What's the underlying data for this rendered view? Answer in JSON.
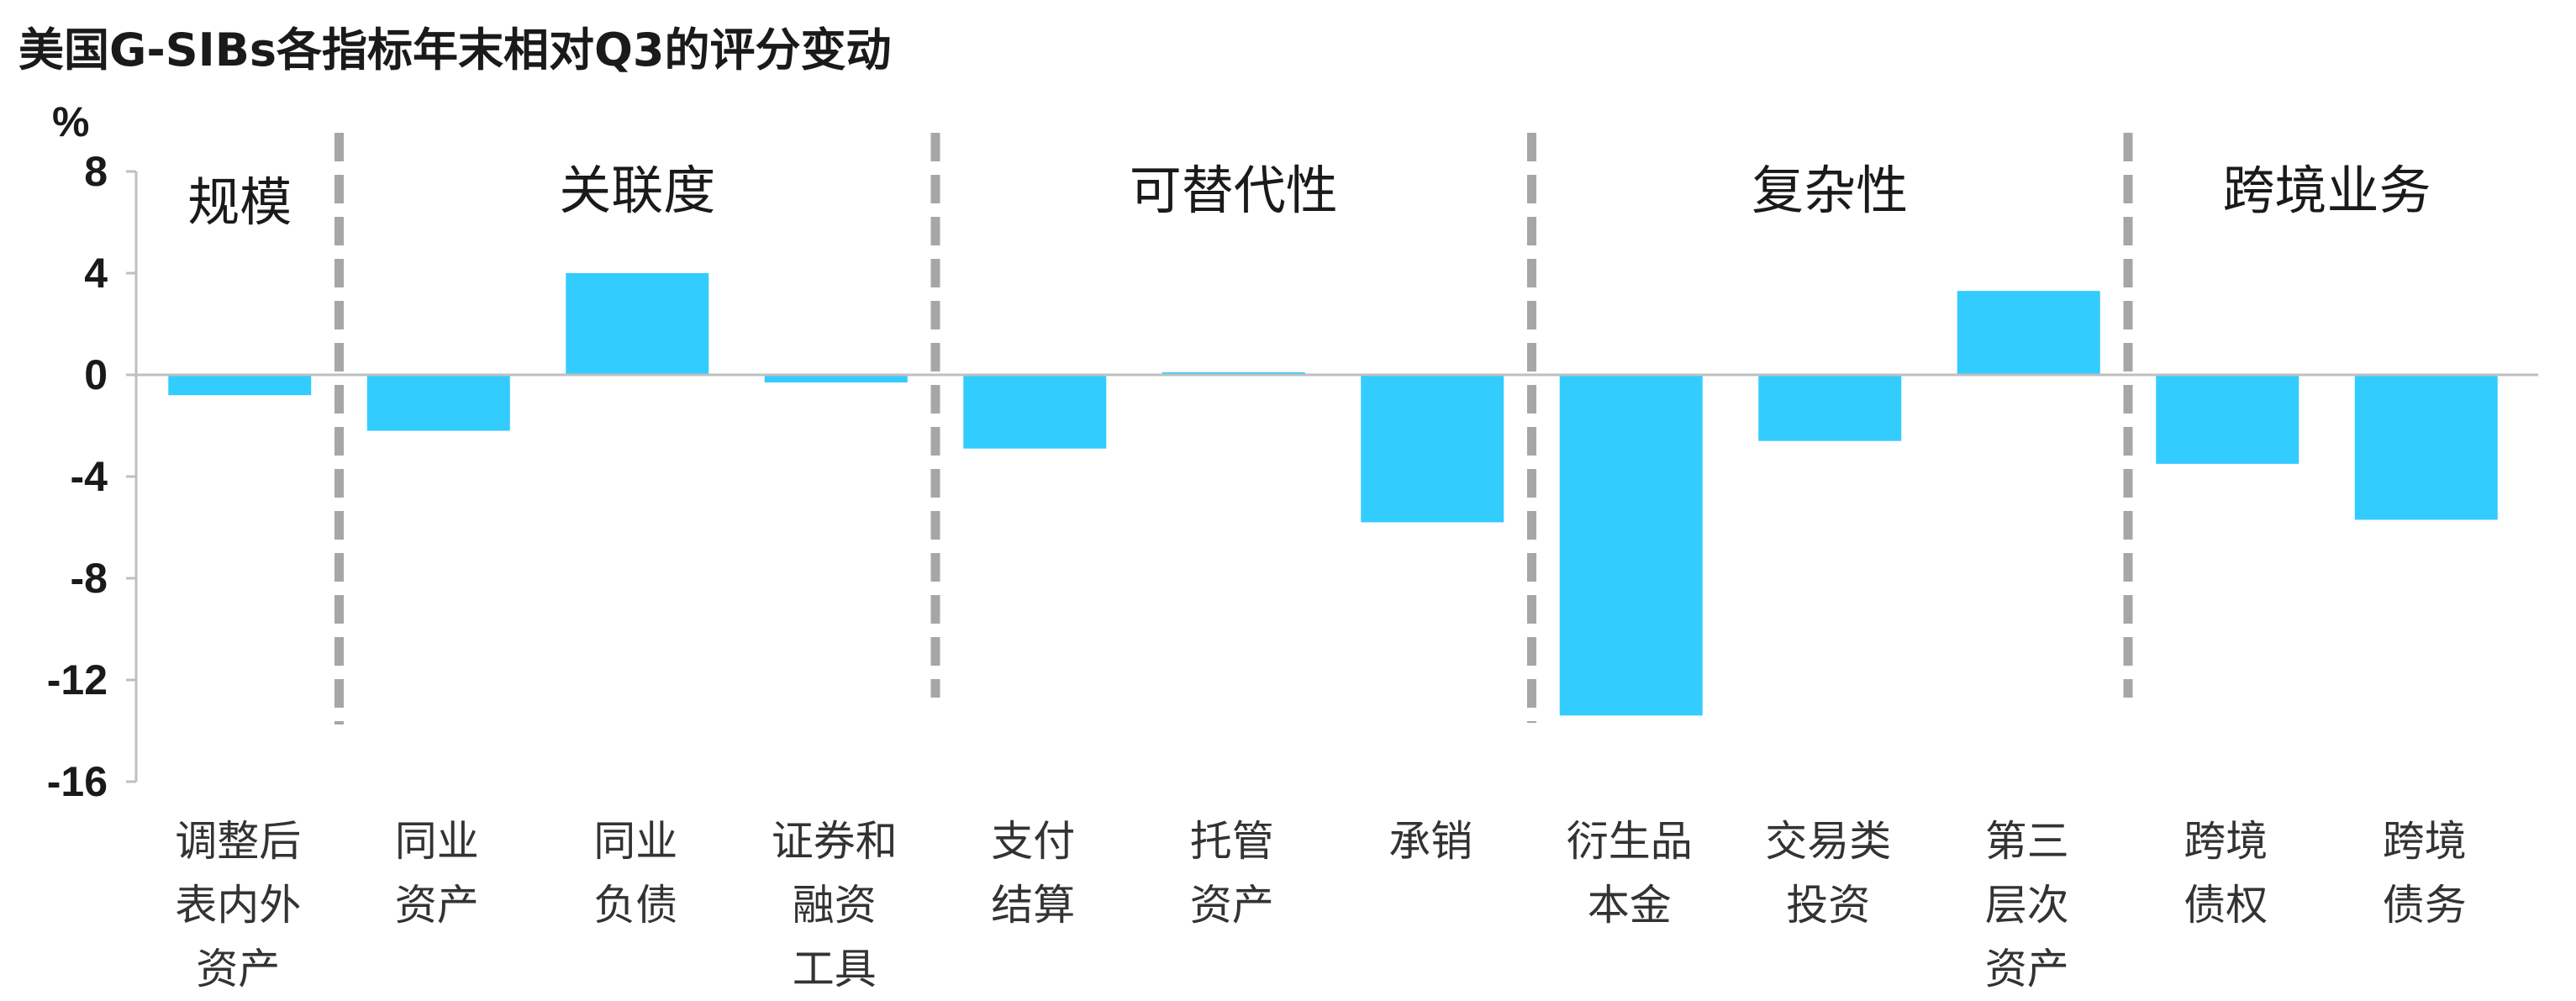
{
  "chart_data": {
    "type": "bar",
    "title": "美国G-SIBs各指标年末相对Q3的评分变动",
    "unit": "%",
    "ylim": [
      -16,
      8
    ],
    "yticks": [
      "8",
      "4",
      "0",
      "-4",
      "-8",
      "-12",
      "-16"
    ],
    "ytick_values": [
      8,
      4,
      0,
      -4,
      -8,
      -12,
      -16
    ],
    "categories": [
      "调整后\n表内外\n资产",
      "同业\n资产",
      "同业\n负债",
      "证券和\n融资\n工具",
      "支付\n结算",
      "托管\n资产",
      "承销",
      "衍生品\n本金",
      "交易类\n投资",
      "第三\n层次\n资产",
      "跨境\n债权",
      "跨境\n债务"
    ],
    "values": [
      -0.8,
      -2.2,
      4.0,
      -0.3,
      -2.9,
      0.1,
      -5.8,
      -13.4,
      -2.6,
      3.3,
      -3.5,
      -5.7
    ],
    "groups": [
      {
        "label": "规模",
        "start": 0,
        "end": 0
      },
      {
        "label": "关联度",
        "start": 1,
        "end": 3
      },
      {
        "label": "可替代性",
        "start": 4,
        "end": 6
      },
      {
        "label": "复杂性",
        "start": 7,
        "end": 9
      },
      {
        "label": "跨境业务",
        "start": 10,
        "end": 11
      }
    ],
    "bar_color": "#33CCFF",
    "separator_color": "#A6A6A6",
    "axis_color": "#BFBFBF",
    "grid": false,
    "legend": "none"
  }
}
